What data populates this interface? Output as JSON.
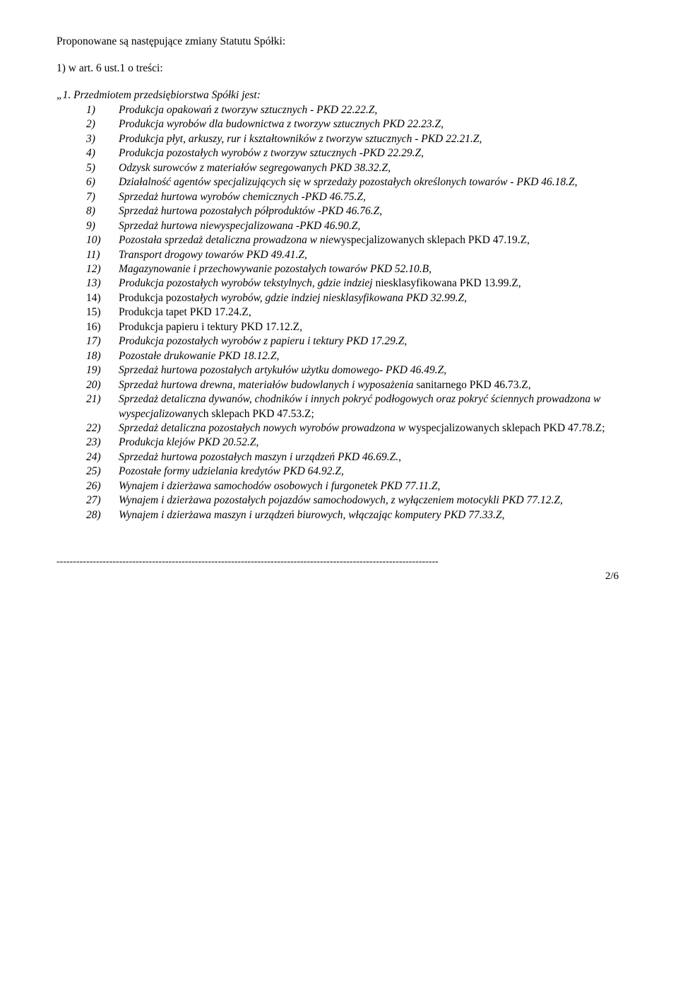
{
  "intro": "Proponowane są następujące zmiany Statutu Spółki:",
  "art_ref": "1) w art. 6 ust.1 o treści:",
  "lead": "„1. Przedmiotem przedsiębiorstwa Spółki jest:",
  "items": [
    {
      "n": "1)",
      "it": true,
      "parts": [
        {
          "t": "Produkcja opakowań z tworzyw sztucznych - PKD 22.22.Z,",
          "i": true
        }
      ]
    },
    {
      "n": "2)",
      "it": true,
      "parts": [
        {
          "t": "Produkcja wyrobów dla budownictwa z tworzyw sztucznych PKD 22.23.Z,",
          "i": true
        }
      ]
    },
    {
      "n": "3)",
      "it": true,
      "parts": [
        {
          "t": "Produkcja płyt, arkuszy, rur i kształtowników z tworzyw sztucznych - PKD 22.21.Z,",
          "i": true
        }
      ]
    },
    {
      "n": "4)",
      "it": true,
      "parts": [
        {
          "t": "Produkcja pozostałych wyrobów z tworzyw sztucznych -PKD 22.29.Z,",
          "i": true
        }
      ]
    },
    {
      "n": "5)",
      "it": true,
      "parts": [
        {
          "t": "Odzysk surowców z materiałów segregowanych PKD 38.32.Z,",
          "i": true
        }
      ]
    },
    {
      "n": "6)",
      "it": true,
      "parts": [
        {
          "t": "Działalność agentów specjalizujących się w sprzedaży pozostałych określonych towarów - PKD 46.18.Z,",
          "i": true
        }
      ]
    },
    {
      "n": "7)",
      "it": true,
      "parts": [
        {
          "t": "Sprzedaż hurtowa wyrobów chemicznych -PKD 46.75.Z,",
          "i": true
        }
      ]
    },
    {
      "n": "8)",
      "it": true,
      "parts": [
        {
          "t": "Sprzedaż hurtowa pozostałych półproduktów -PKD 46.76.Z,",
          "i": true
        }
      ]
    },
    {
      "n": "9)",
      "it": true,
      "parts": [
        {
          "t": "Sprzedaż hurtowa niewyspecjalizowana -PKD 46.90.Z,",
          "i": true
        }
      ]
    },
    {
      "n": "10)",
      "it": true,
      "parts": [
        {
          "t": "Pozostała sprzedaż detaliczna prowadzona w nie",
          "i": true
        },
        {
          "t": "wyspecjalizowanych sklepach PKD 47.19.Z,",
          "i": false
        }
      ]
    },
    {
      "n": "11)",
      "it": true,
      "parts": [
        {
          "t": "Transport drogowy towarów PKD 49.41.Z,",
          "i": true
        }
      ]
    },
    {
      "n": "12)",
      "it": true,
      "parts": [
        {
          "t": "Magazynowanie i przechowywanie pozostałych towarów PKD 52.10.B,",
          "i": true
        }
      ]
    },
    {
      "n": "13)",
      "it": true,
      "parts": [
        {
          "t": "Produkcja pozostałych wyrobów tekstylnych, gdzie indziej ",
          "i": true
        },
        {
          "t": "niesklasyfikowana PKD 13.99.Z,",
          "i": false
        }
      ]
    },
    {
      "n": "14)",
      "it": false,
      "parts": [
        {
          "t": "Produkcja pozost",
          "i": false
        },
        {
          "t": "ałych wyrobów, gdzie indziej niesklasyfikowana PKD 32.99.Z,",
          "i": true
        }
      ]
    },
    {
      "n": "15)",
      "it": false,
      "parts": [
        {
          "t": "Produkcja tapet PKD 17.24.Z,",
          "i": false
        }
      ]
    },
    {
      "n": "16)",
      "it": false,
      "parts": [
        {
          "t": "Produkcja papieru i tektury PKD 17.12.Z,",
          "i": false
        }
      ]
    },
    {
      "n": "17)",
      "it": true,
      "parts": [
        {
          "t": "Produkcja pozostałych wyrobów z papieru i tektury PKD 17.29.Z,",
          "i": true
        }
      ]
    },
    {
      "n": "18)",
      "it": true,
      "parts": [
        {
          "t": "Pozostałe drukowanie PKD 18.12.Z,",
          "i": true
        }
      ]
    },
    {
      "n": "19)",
      "it": true,
      "parts": [
        {
          "t": "Sprzedaż hurtowa pozostałych artykułów użytku domowego- PKD 46.49.Z,",
          "i": true
        }
      ]
    },
    {
      "n": "20)",
      "it": true,
      "parts": [
        {
          "t": "Sprzedaż hurtowa drewna, materiałów budowlanych i wyposażenia ",
          "i": true
        },
        {
          "t": "sanitarnego PKD 46.73.Z,",
          "i": false
        }
      ]
    },
    {
      "n": "21)",
      "it": true,
      "parts": [
        {
          "t": "Sprzedaż detaliczna dywanów, chodników i innych pokryć podłogowych oraz pokryć ściennych prowadzona w wyspecjalizowan",
          "i": true
        },
        {
          "t": "ych sklepach PKD 47.53.Z;",
          "i": false
        }
      ]
    },
    {
      "n": "22)",
      "it": true,
      "parts": [
        {
          "t": "Sprzedaż detaliczna pozostałych nowych wyrobów prowadzona w ",
          "i": true
        },
        {
          "t": "wyspecjalizowanych sklepach PKD 47.78.Z;",
          "i": false
        }
      ]
    },
    {
      "n": "23)",
      "it": true,
      "parts": [
        {
          "t": "Produkcja klejów PKD 20.52.Z,",
          "i": true
        }
      ]
    },
    {
      "n": "24)",
      "it": true,
      "parts": [
        {
          "t": "Sprzedaż hurtowa pozostałych maszyn i urządzeń PKD 46.69.Z.,",
          "i": true
        }
      ]
    },
    {
      "n": "25)",
      "it": true,
      "parts": [
        {
          "t": "Pozostałe formy udzielania kredytów PKD 64.92.Z,",
          "i": true
        }
      ]
    },
    {
      "n": "26)",
      "it": true,
      "parts": [
        {
          "t": "Wynajem i dzierżawa samochodów osobowych i furgonetek PKD 77.11.Z,",
          "i": true
        }
      ]
    },
    {
      "n": "27)",
      "it": true,
      "parts": [
        {
          "t": "Wynajem i dzierżawa pozostałych pojazdów samochodowych, z wyłączeniem motocykli PKD 77.12.Z,",
          "i": true
        }
      ]
    },
    {
      "n": "28)",
      "it": true,
      "parts": [
        {
          "t": "Wynajem i dzierżawa maszyn i urządzeń biurowych, włączając komputery PKD 77.33.Z,",
          "i": true
        }
      ]
    }
  ],
  "divider": "--------------------------------------------------------------------------------------------------------------------",
  "pagenum": "2/6"
}
